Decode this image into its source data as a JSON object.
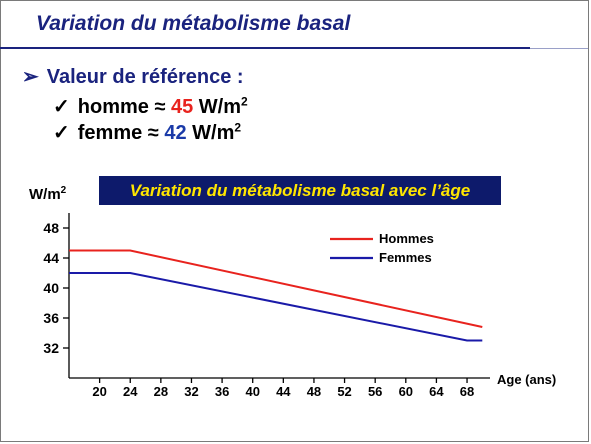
{
  "slide": {
    "title": "Variation du métabolisme basal",
    "bullet_main": "Valeur de référence :",
    "bullet_arrow": "➢",
    "check": "✓",
    "homme": {
      "label": "homme ≈",
      "value": "45",
      "unit": "W/m",
      "sup": "2"
    },
    "femme": {
      "label": "femme ≈",
      "value": "42",
      "unit": "W/m",
      "sup": "2"
    }
  },
  "chart_data": {
    "type": "line",
    "title": "Variation du métabolisme basal avec l’âge",
    "ylabel": "W/m",
    "ylabel_sup": "2",
    "xlabel": "Age (ans)",
    "xlim": [
      16,
      71
    ],
    "ylim": [
      28,
      50
    ],
    "x_ticks": [
      20,
      24,
      28,
      32,
      36,
      40,
      44,
      48,
      52,
      56,
      60,
      64,
      68
    ],
    "y_ticks": [
      32,
      36,
      40,
      44,
      48
    ],
    "legend_position": "top-right",
    "series": [
      {
        "name": "Hommes",
        "color": "#e8231e",
        "x": [
          16,
          24,
          70
        ],
        "y": [
          45,
          45,
          34.8
        ]
      },
      {
        "name": "Femmes",
        "color": "#1a1aa8",
        "x": [
          16,
          24,
          68,
          70
        ],
        "y": [
          42,
          42,
          33,
          33
        ]
      }
    ]
  }
}
